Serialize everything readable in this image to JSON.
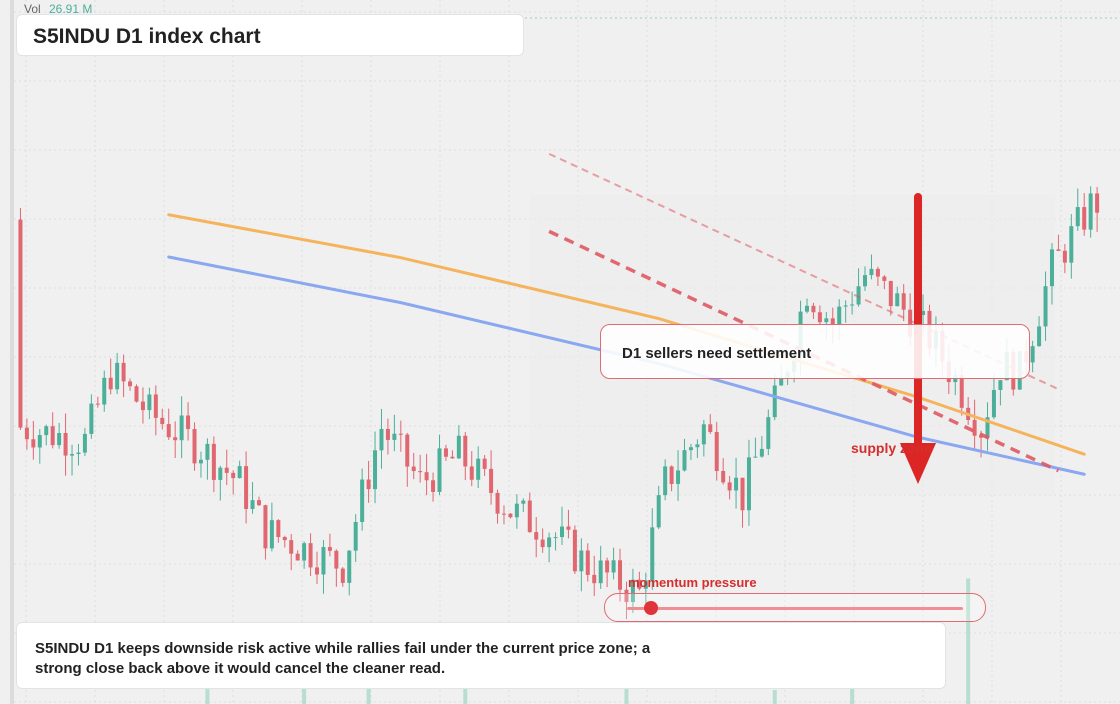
{
  "header": {
    "vol_label": "Vol",
    "vol_value": "26.91 M"
  },
  "title": "S5INDU D1 index chart",
  "annotations": {
    "note": "D1 sellers need settlement",
    "supply": "supply zone",
    "momentum_label": "momentum pressure",
    "momentum_level": 0.07,
    "summary": "S5INDU D1 keeps downside risk active while rallies fail under the current price zone; a strong close back above it would cancel the cleaner read."
  },
  "colors": {
    "up": "#4caf9a",
    "down": "#e06670",
    "ma_orange": "#f5b45c",
    "ma_blue": "#8aa8f0",
    "trend_red": "#e05a62",
    "arrow": "#dc2626",
    "background": "#f0f0f0"
  },
  "chart_data": {
    "type": "candlestick",
    "x_range": [
      0,
      170
    ],
    "y_range": [
      0,
      100
    ],
    "candles": [],
    "volume": [
      {
        "x": 30,
        "v": 8
      },
      {
        "x": 45,
        "v": 6
      },
      {
        "x": 55,
        "v": 5
      },
      {
        "x": 70,
        "v": 4
      },
      {
        "x": 95,
        "v": 4
      },
      {
        "x": 118,
        "v": 3
      },
      {
        "x": 130,
        "v": 5
      },
      {
        "x": 148,
        "v": 26.91
      }
    ],
    "moving_averages": [
      {
        "name": "",
        "color": "orange",
        "points": [
          [
            24,
            70.7
          ],
          [
            60,
            64.5
          ],
          [
            100,
            55.7
          ],
          [
            140,
            44.4
          ],
          [
            166,
            36.1
          ]
        ]
      },
      {
        "name": "",
        "color": "blue",
        "points": [
          [
            24,
            64.6
          ],
          [
            60,
            58.0
          ],
          [
            100,
            49.2
          ],
          [
            140,
            38.6
          ],
          [
            166,
            33.2
          ]
        ]
      }
    ],
    "trendlines": [
      {
        "style": "dashed",
        "points": [
          [
            83,
            68.3
          ],
          [
            162,
            33.7
          ]
        ]
      },
      {
        "style": "dashed-light",
        "points": [
          [
            83,
            79.5
          ],
          [
            162,
            45.5
          ]
        ]
      }
    ],
    "grid": true
  }
}
